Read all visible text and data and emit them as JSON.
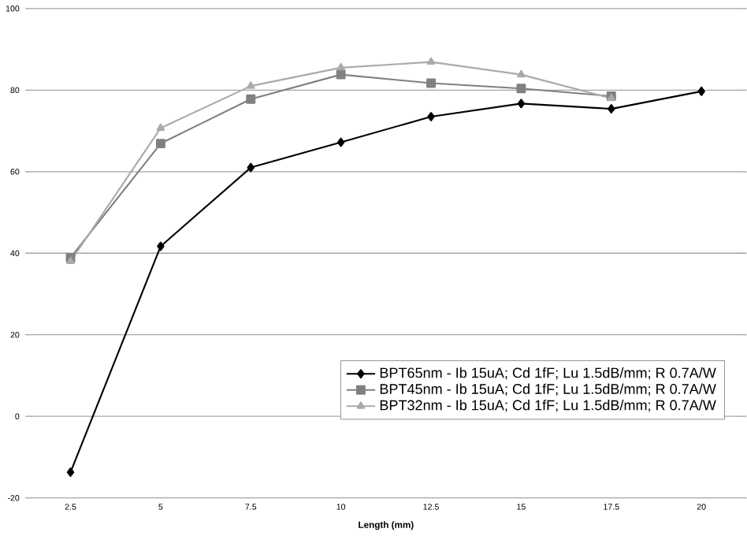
{
  "chart_data": {
    "type": "line",
    "xlabel": "Length (mm)",
    "categories": [
      "2.5",
      "5",
      "7.5",
      "10",
      "12.5",
      "15",
      "17.5",
      "20"
    ],
    "series": [
      {
        "name": "BPT65nm - Ib 15uA; Cd 1fF; Lu 1.5dB/mm; R 0.7A/W",
        "color": "#000000",
        "marker": "diamond",
        "values": [
          -13.7,
          41.7,
          61,
          67.2,
          73.5,
          76.7,
          75.4,
          79.7
        ]
      },
      {
        "name": "BPT45nm - Ib 15uA; Cd 1fF; Lu 1.5dB/mm; R 0.7A/W",
        "color": "#808080",
        "marker": "square",
        "values": [
          38.9,
          66.9,
          77.8,
          83.8,
          81.7,
          80.4,
          78.5,
          null
        ]
      },
      {
        "name": "BPT32nm - Ib 15uA; Cd 1fF; Lu 1.5dB/mm; R 0.7A/W",
        "color": "#aaaaaa",
        "marker": "triangle",
        "values": [
          38,
          70.7,
          81,
          85.5,
          86.9,
          83.8,
          78,
          null
        ]
      }
    ],
    "ylim": [
      -20,
      100
    ],
    "yticks": [
      -20,
      0,
      20,
      40,
      60,
      80,
      100
    ],
    "grid": "y",
    "legend": "bottom right",
    "line_style": "solid"
  }
}
